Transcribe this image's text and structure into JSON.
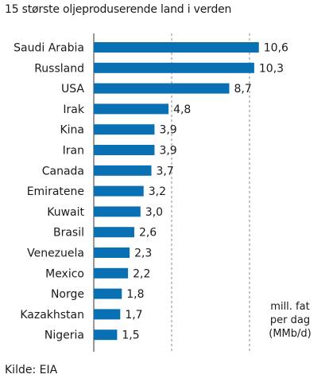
{
  "title": "15 største oljeproduserende land i verden",
  "source": "Kilde: EIA",
  "unit_note": [
    "mill. fat",
    "per dag",
    "(MMb/d)"
  ],
  "colors": {
    "bar": "#0a70b4",
    "grid": "#888888",
    "axis": "#333333"
  },
  "chart_data": {
    "type": "bar",
    "orientation": "horizontal",
    "title": "15 største oljeproduserende land i verden",
    "categories": [
      "Saudi Arabia",
      "Russland",
      "USA",
      "Irak",
      "Kina",
      "Iran",
      "Canada",
      "Emiratene",
      "Kuwait",
      "Brasil",
      "Venezuela",
      "Mexico",
      "Norge",
      "Kazakhstan",
      "Nigeria"
    ],
    "values": [
      10.6,
      10.3,
      8.7,
      4.8,
      3.9,
      3.9,
      3.7,
      3.2,
      3.0,
      2.6,
      2.3,
      2.2,
      1.8,
      1.7,
      1.5
    ],
    "value_labels": [
      "10,6",
      "10,3",
      "8,7",
      "4,8",
      "3,9",
      "3,9",
      "3,7",
      "3,2",
      "3,0",
      "2,6",
      "2,3",
      "2,2",
      "1,8",
      "1,7",
      "1,5"
    ],
    "xlim": [
      0,
      11
    ],
    "gridlines": [
      5,
      10
    ],
    "grid_style": "dashed",
    "unit": "mill. fat per dag (MMb/d)"
  }
}
